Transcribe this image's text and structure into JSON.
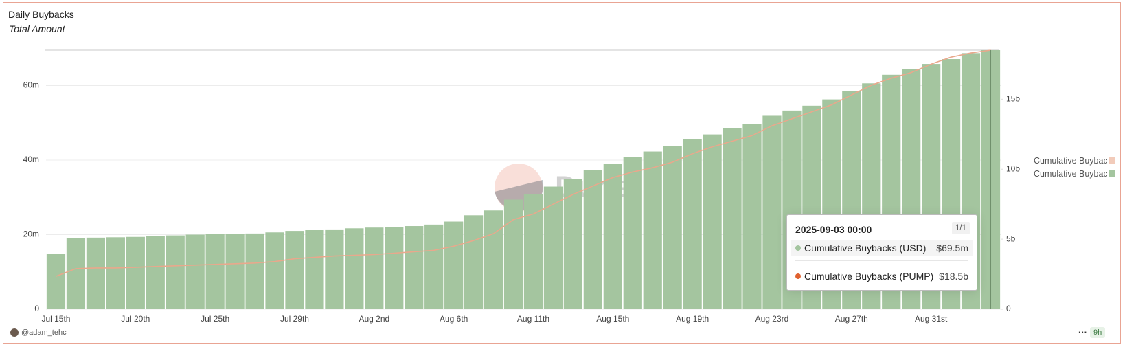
{
  "chart_data": {
    "type": "bar",
    "title": "Daily Buybacks",
    "subtitle": "Total Amount",
    "watermark": "Dune",
    "author": "@adam_tehc",
    "age": "9h",
    "categories": [
      "Jul 15th",
      null,
      null,
      null,
      "Jul 20th",
      null,
      null,
      null,
      "Jul 25th",
      null,
      null,
      null,
      "Jul 29th",
      null,
      null,
      null,
      "Aug 2nd",
      null,
      null,
      null,
      "Aug 6th",
      null,
      null,
      null,
      "Aug 11th",
      null,
      null,
      null,
      "Aug 15th",
      null,
      null,
      null,
      "Aug 19th",
      null,
      null,
      null,
      "Aug 23rd",
      null,
      null,
      null,
      "Aug 27th",
      null,
      null,
      null,
      "Aug 31st",
      null,
      null,
      null
    ],
    "series": [
      {
        "name": "Cumulative Buybacks (USD)",
        "type": "bar",
        "axis": "y",
        "color": "#a4c59f",
        "values": [
          14800000,
          19000000,
          19200000,
          19300000,
          19400000,
          19600000,
          19800000,
          20000000,
          20100000,
          20200000,
          20300000,
          20600000,
          21000000,
          21200000,
          21400000,
          21700000,
          21900000,
          22100000,
          22300000,
          22700000,
          23500000,
          25200000,
          26500000,
          29400000,
          30800000,
          32900000,
          35000000,
          37300000,
          39000000,
          40800000,
          42300000,
          43800000,
          45600000,
          46900000,
          48500000,
          49600000,
          51900000,
          53300000,
          54600000,
          56300000,
          58500000,
          60600000,
          62900000,
          64400000,
          65800000,
          67100000,
          68700000,
          69500000
        ]
      },
      {
        "name": "Cumulative Buybacks (PUMP)",
        "type": "line",
        "axis": "y2",
        "color": "#e9a88c",
        "values": [
          2350000000,
          2900000000,
          2950000000,
          2950000000,
          3000000000,
          3050000000,
          3100000000,
          3150000000,
          3200000000,
          3250000000,
          3300000000,
          3400000000,
          3600000000,
          3700000000,
          3800000000,
          3850000000,
          3900000000,
          4000000000,
          4100000000,
          4200000000,
          4500000000,
          4900000000,
          5400000000,
          6400000000,
          6800000000,
          7500000000,
          8200000000,
          8800000000,
          9400000000,
          9800000000,
          10100000000,
          10500000000,
          11100000000,
          11600000000,
          12000000000,
          12400000000,
          13100000000,
          13600000000,
          14100000000,
          14600000000,
          15300000000,
          16000000000,
          16500000000,
          16900000000,
          17500000000,
          18000000000,
          18300000000,
          18500000000
        ]
      }
    ],
    "ylim": [
      0,
      69500000
    ],
    "yticks": [
      0,
      {
        "value": 20000000,
        "label": "20m"
      },
      {
        "value": 40000000,
        "label": "40m"
      },
      {
        "value": 60000000,
        "label": "60m"
      }
    ],
    "y2lim": [
      0,
      18500000000
    ],
    "y2ticks": [
      0,
      {
        "value": 5000000000,
        "label": "5b"
      },
      {
        "value": 10000000000,
        "label": "10b"
      },
      {
        "value": 15000000000,
        "label": "15b"
      }
    ],
    "grid": true,
    "legend": "right",
    "tooltip": {
      "date": "2025-09-03 00:00",
      "page": "1/1",
      "index": 47,
      "value_labels": [
        "$69.5m",
        "$18.5b"
      ]
    }
  }
}
